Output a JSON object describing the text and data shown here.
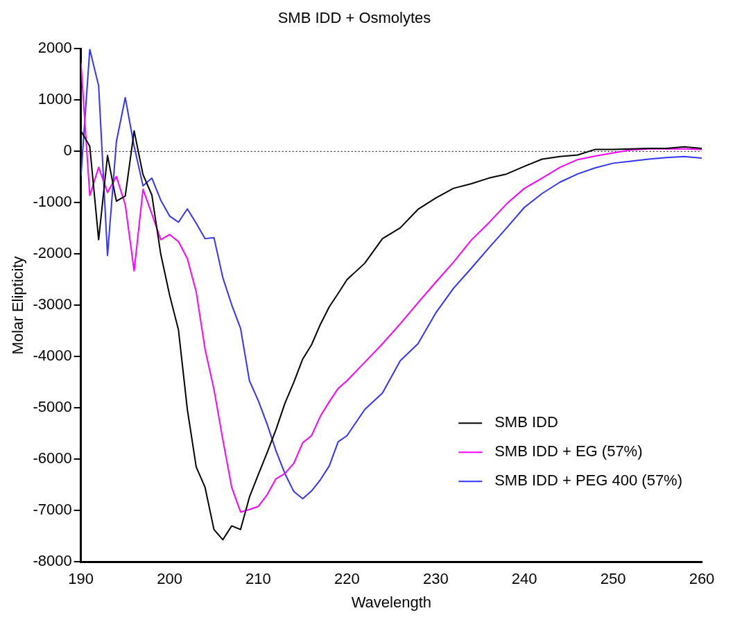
{
  "chart_data": {
    "type": "line",
    "title": "SMB IDD + Osmolytes",
    "xlabel": "Wavelength",
    "ylabel": "Molar Elipticity",
    "x": [
      190,
      191,
      192,
      193,
      194,
      195,
      196,
      197,
      198,
      199,
      200,
      201,
      202,
      203,
      204,
      205,
      206,
      207,
      208,
      209,
      210,
      211,
      212,
      213,
      214,
      215,
      216,
      217,
      218,
      219,
      220,
      222,
      224,
      226,
      228,
      230,
      232,
      234,
      236,
      238,
      240,
      242,
      244,
      246,
      248,
      250,
      252,
      254,
      256,
      258,
      260
    ],
    "series": [
      {
        "name": "SMB IDD",
        "color": "#000000",
        "values": [
          400,
          100,
          -1720,
          -80,
          -970,
          -870,
          400,
          -450,
          -850,
          -2000,
          -2800,
          -3480,
          -5030,
          -6150,
          -6550,
          -7370,
          -7570,
          -7300,
          -7370,
          -6740,
          -6300,
          -5870,
          -5420,
          -4910,
          -4500,
          -4050,
          -3770,
          -3370,
          -3030,
          -2770,
          -2500,
          -2180,
          -1700,
          -1490,
          -1130,
          -910,
          -720,
          -630,
          -520,
          -440,
          -290,
          -150,
          -100,
          -70,
          40,
          40,
          50,
          60,
          60,
          90,
          60
        ]
      },
      {
        "name": "SMB IDD + EG (57%)",
        "color": "#ff00ff",
        "values": [
          1730,
          -860,
          -310,
          -800,
          -490,
          -1040,
          -2330,
          -740,
          -1220,
          -1720,
          -1620,
          -1760,
          -2090,
          -2740,
          -3860,
          -4640,
          -5620,
          -6550,
          -7030,
          -6980,
          -6920,
          -6690,
          -6380,
          -6280,
          -6080,
          -5680,
          -5540,
          -5160,
          -4880,
          -4620,
          -4470,
          -4110,
          -3750,
          -3360,
          -2950,
          -2550,
          -2160,
          -1730,
          -1390,
          -1020,
          -720,
          -520,
          -310,
          -160,
          -90,
          -30,
          30,
          50,
          50,
          50,
          40
        ]
      },
      {
        "name": "SMB IDD + PEG 400 (57%)",
        "color": "#3333ff",
        "values": [
          -490,
          1990,
          1280,
          -2030,
          190,
          1050,
          100,
          -670,
          -520,
          -950,
          -1260,
          -1380,
          -1120,
          -1400,
          -1700,
          -1680,
          -2460,
          -2990,
          -3450,
          -4470,
          -4860,
          -5320,
          -5840,
          -6280,
          -6630,
          -6770,
          -6620,
          -6400,
          -6130,
          -5660,
          -5540,
          -5030,
          -4710,
          -4080,
          -3750,
          -3150,
          -2670,
          -2280,
          -1880,
          -1490,
          -1090,
          -820,
          -600,
          -440,
          -320,
          -230,
          -190,
          -150,
          -120,
          -100,
          -130
        ]
      }
    ],
    "xlim": [
      190,
      260
    ],
    "xticks": [
      190,
      200,
      210,
      220,
      230,
      240,
      250,
      260
    ],
    "ylim": [
      -8000,
      2000
    ],
    "yticks": [
      -8000,
      -7000,
      -6000,
      -5000,
      -4000,
      -3000,
      -2000,
      -1000,
      0,
      1000,
      2000
    ],
    "ref_lines": [
      {
        "axis": "y",
        "value": 0,
        "color": "#000000",
        "line_style": "dotted"
      }
    ],
    "grid": false,
    "legend": "bottom right",
    "marker": "none",
    "line_style": "solid"
  }
}
